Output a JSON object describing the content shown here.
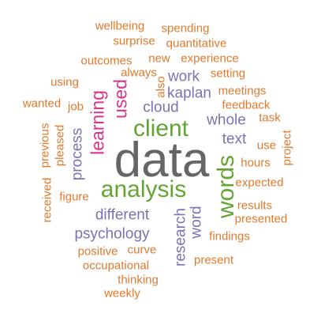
{
  "colors": {
    "orange": "#e07a2f",
    "purple": "#7a73b3",
    "pink": "#d9348b",
    "green": "#63a532",
    "gray": "#666666"
  },
  "words": [
    {
      "text": "data",
      "color": "#666666"
    },
    {
      "text": "analysis",
      "color": "#63a532"
    },
    {
      "text": "client",
      "color": "#63a532"
    },
    {
      "text": "words",
      "color": "#63a532"
    },
    {
      "text": "learning",
      "color": "#d9348b"
    },
    {
      "text": "used",
      "color": "#d9348b"
    },
    {
      "text": "research",
      "color": "#7a73b3"
    },
    {
      "text": "psychology",
      "color": "#7a73b3"
    },
    {
      "text": "different",
      "color": "#7a73b3"
    },
    {
      "text": "process",
      "color": "#7a73b3"
    },
    {
      "text": "word",
      "color": "#7a73b3"
    },
    {
      "text": "whole",
      "color": "#7a73b3"
    },
    {
      "text": "text",
      "color": "#7a73b3"
    },
    {
      "text": "cloud",
      "color": "#7a73b3"
    },
    {
      "text": "work",
      "color": "#7a73b3"
    },
    {
      "text": "kaplan",
      "color": "#7a73b3"
    },
    {
      "text": "wellbeing",
      "color": "#e07a2f"
    },
    {
      "text": "spending",
      "color": "#e07a2f"
    },
    {
      "text": "surprise",
      "color": "#e07a2f"
    },
    {
      "text": "quantitative",
      "color": "#e07a2f"
    },
    {
      "text": "outcomes",
      "color": "#e07a2f"
    },
    {
      "text": "new",
      "color": "#e07a2f"
    },
    {
      "text": "experience",
      "color": "#e07a2f"
    },
    {
      "text": "always",
      "color": "#e07a2f"
    },
    {
      "text": "setting",
      "color": "#e07a2f"
    },
    {
      "text": "using",
      "color": "#e07a2f"
    },
    {
      "text": "also",
      "color": "#e07a2f"
    },
    {
      "text": "meetings",
      "color": "#e07a2f"
    },
    {
      "text": "wanted",
      "color": "#e07a2f"
    },
    {
      "text": "job",
      "color": "#e07a2f"
    },
    {
      "text": "feedback",
      "color": "#e07a2f"
    },
    {
      "text": "task",
      "color": "#e07a2f"
    },
    {
      "text": "use",
      "color": "#e07a2f"
    },
    {
      "text": "project",
      "color": "#e07a2f"
    },
    {
      "text": "previous",
      "color": "#e07a2f"
    },
    {
      "text": "pleased",
      "color": "#e07a2f"
    },
    {
      "text": "hours",
      "color": "#e07a2f"
    },
    {
      "text": "expected",
      "color": "#e07a2f"
    },
    {
      "text": "received",
      "color": "#e07a2f"
    },
    {
      "text": "figure",
      "color": "#e07a2f"
    },
    {
      "text": "results",
      "color": "#e07a2f"
    },
    {
      "text": "presented",
      "color": "#e07a2f"
    },
    {
      "text": "findings",
      "color": "#e07a2f"
    },
    {
      "text": "positive",
      "color": "#e07a2f"
    },
    {
      "text": "curve",
      "color": "#e07a2f"
    },
    {
      "text": "occupational",
      "color": "#e07a2f"
    },
    {
      "text": "present",
      "color": "#e07a2f"
    },
    {
      "text": "thinking",
      "color": "#e07a2f"
    },
    {
      "text": "weekly",
      "color": "#e07a2f"
    }
  ]
}
